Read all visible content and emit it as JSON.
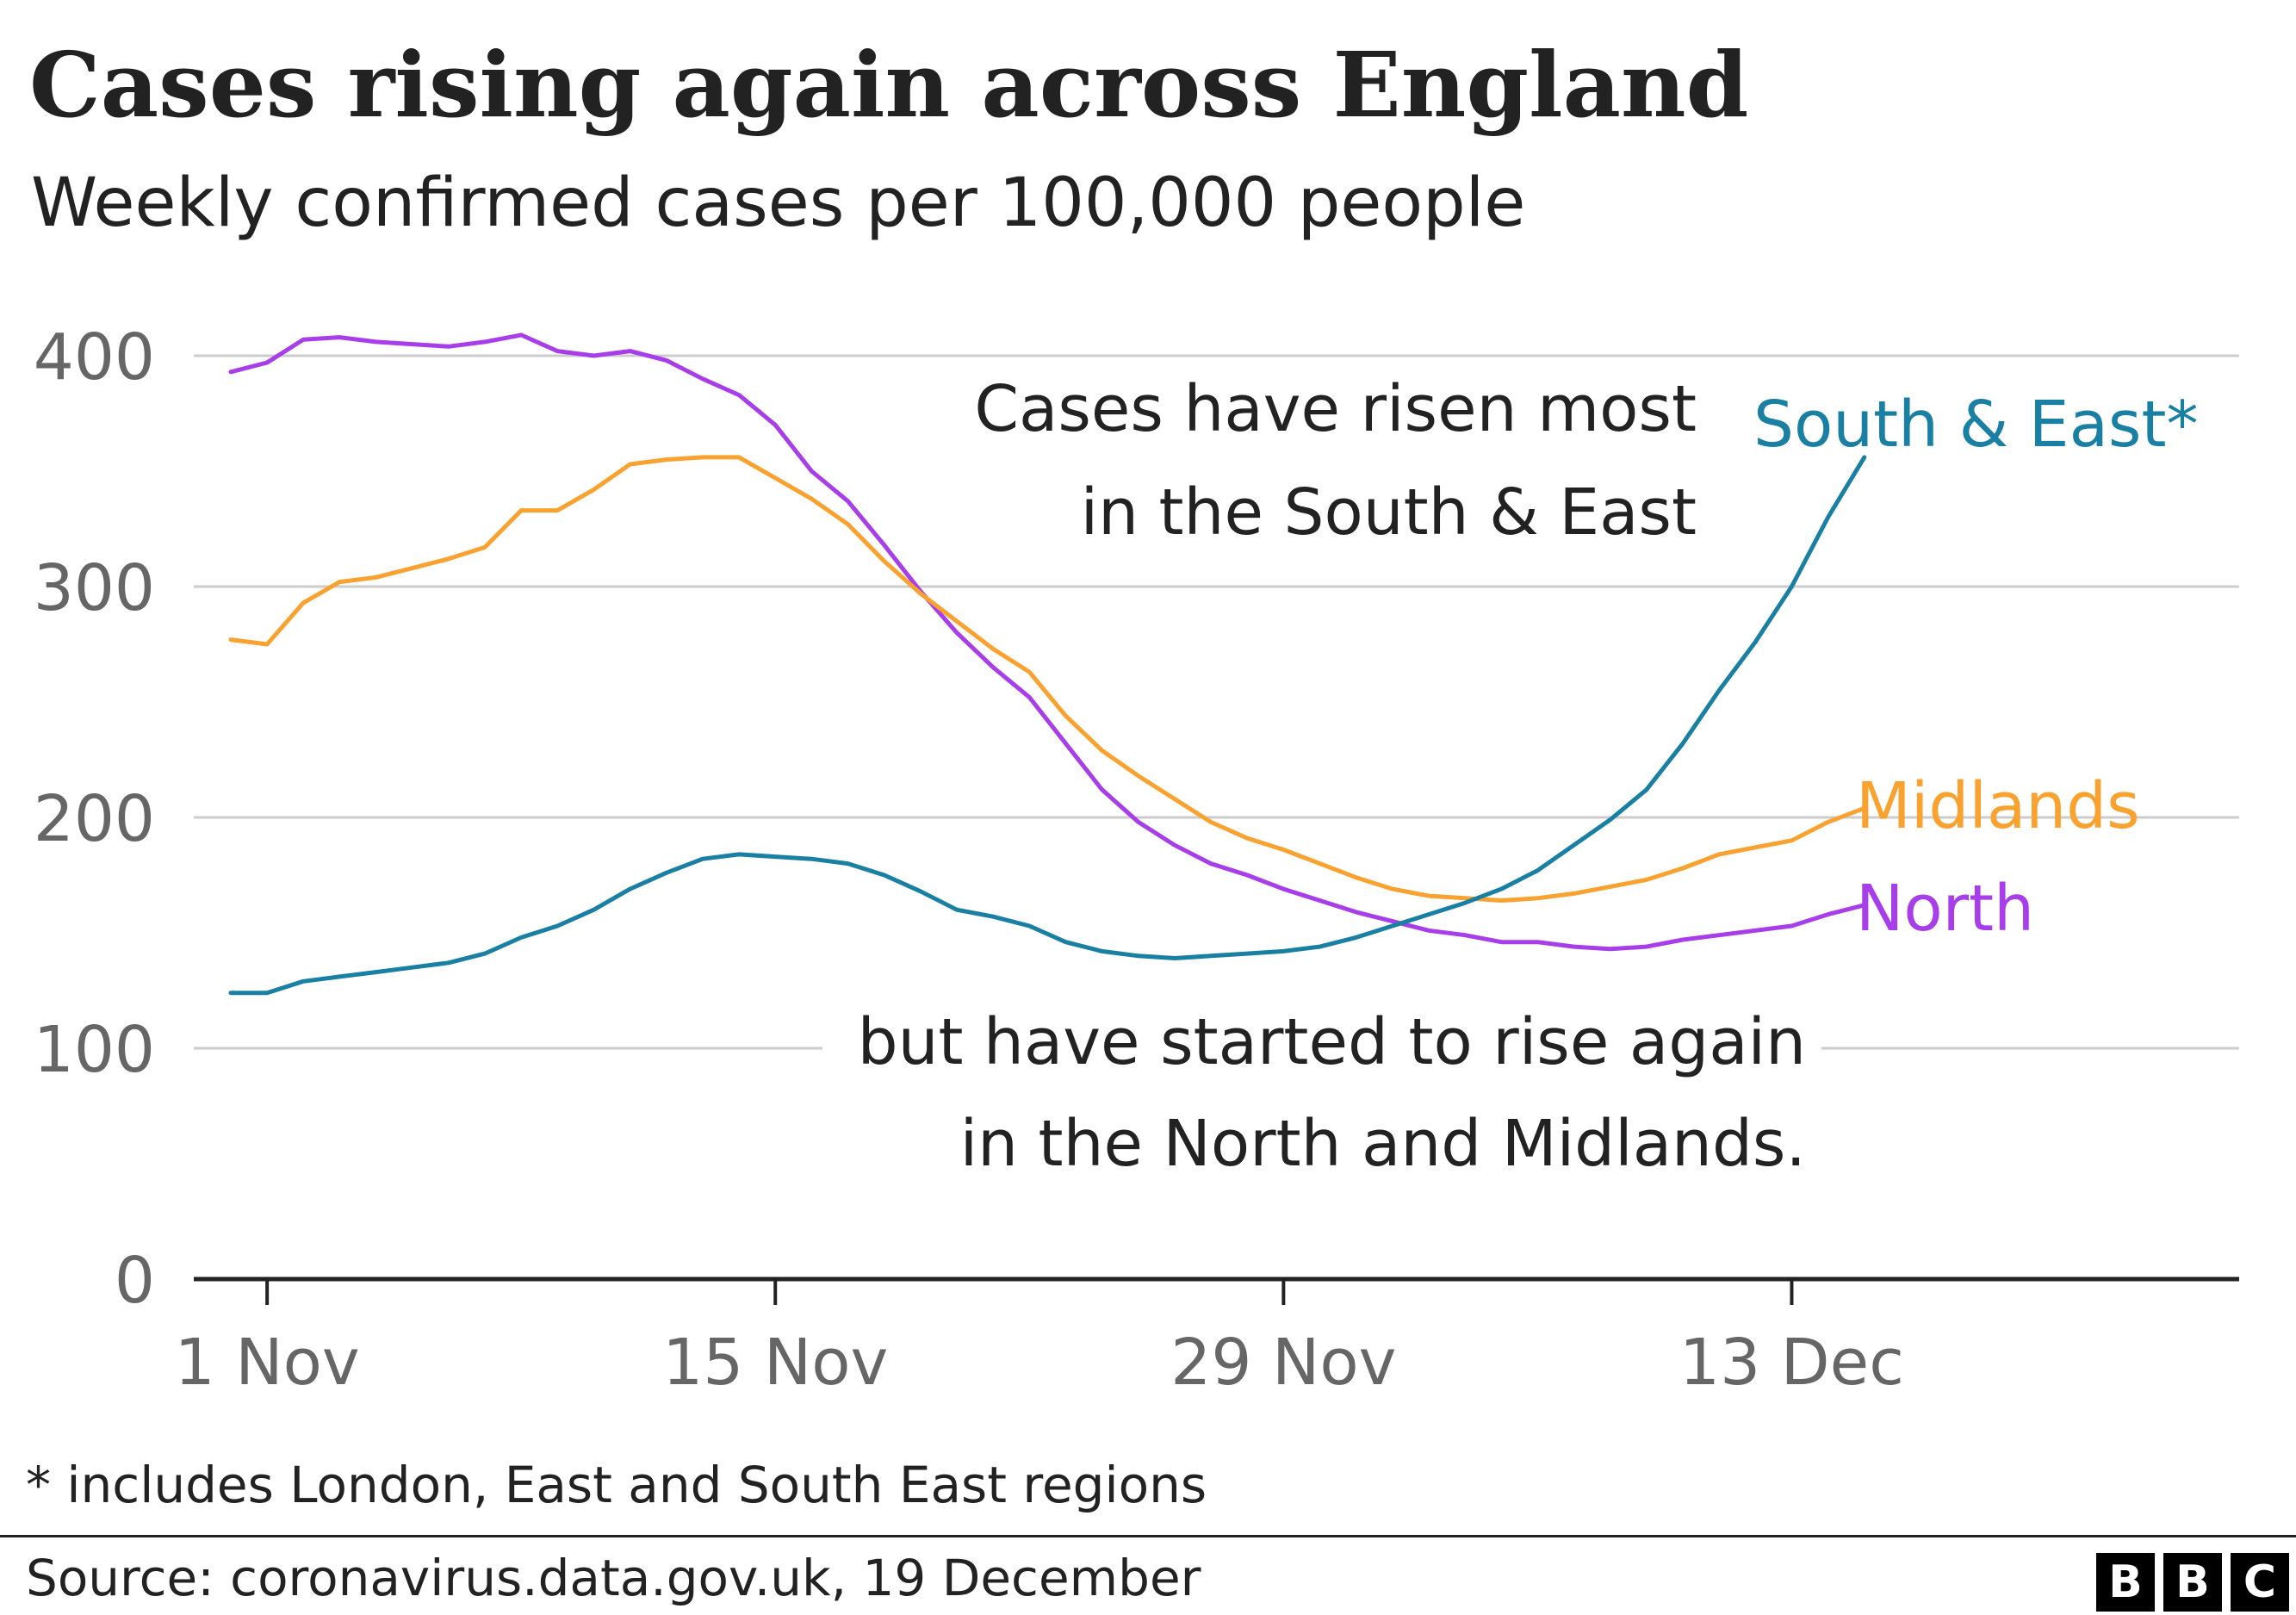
{
  "title": "Cases rising again across England",
  "subtitle": "Weekly confirmed cases per 100,000 people",
  "footnote": "* includes London, East and South East regions",
  "source": "Source: coronavirus.data.gov.uk, 19 December",
  "logo": {
    "letters": [
      "B",
      "B",
      "C"
    ],
    "name": "BBC"
  },
  "colors": {
    "north": "#a83dea",
    "midlands": "#f9a230",
    "south_east": "#1a80a3",
    "grid": "#cccccc",
    "axis": "#222222",
    "tick_text": "#666666"
  },
  "chart_data": {
    "type": "line",
    "x_unit": "date",
    "x_start": "1 Nov",
    "x_end": "19 Dec",
    "ylim": [
      0,
      400
    ],
    "yticks": [
      0,
      100,
      200,
      300,
      400
    ],
    "xtick_labels": [
      "1 Nov",
      "15 Nov",
      "29 Nov",
      "13 Dec"
    ],
    "xlabel": "",
    "ylabel": "",
    "grid": true,
    "annotations": [
      {
        "text_lines": [
          "Cases have risen most",
          "in the South & East"
        ]
      },
      {
        "text_lines": [
          "but have started to rise again",
          "in the North and Midlands."
        ]
      }
    ],
    "series": [
      {
        "name": "North",
        "color": "#a83dea",
        "values": [
          393,
          397,
          407,
          408,
          406,
          405,
          404,
          406,
          409,
          402,
          400,
          402,
          398,
          390,
          383,
          370,
          350,
          337,
          318,
          298,
          280,
          265,
          252,
          232,
          212,
          198,
          188,
          180,
          175,
          169,
          164,
          159,
          155,
          151,
          149,
          146,
          146,
          144,
          143,
          144,
          147,
          149,
          151,
          153,
          158,
          162
        ]
      },
      {
        "name": "Midlands",
        "color": "#f9a230",
        "values": [
          277,
          275,
          293,
          302,
          304,
          308,
          312,
          317,
          333,
          333,
          342,
          353,
          355,
          356,
          356,
          347,
          338,
          327,
          311,
          297,
          285,
          273,
          263,
          244,
          229,
          218,
          208,
          198,
          191,
          186,
          180,
          174,
          169,
          166,
          165,
          164,
          165,
          167,
          170,
          173,
          178,
          184,
          187,
          190,
          198,
          204
        ]
      },
      {
        "name": "South & East*",
        "color": "#1a80a3",
        "values": [
          124,
          124,
          129,
          131,
          133,
          135,
          137,
          141,
          148,
          153,
          160,
          169,
          176,
          182,
          184,
          183,
          182,
          180,
          175,
          168,
          160,
          157,
          153,
          146,
          142,
          140,
          139,
          140,
          141,
          142,
          144,
          148,
          153,
          158,
          163,
          169,
          177,
          188,
          199,
          212,
          232,
          255,
          276,
          300,
          330,
          356
        ]
      }
    ]
  }
}
